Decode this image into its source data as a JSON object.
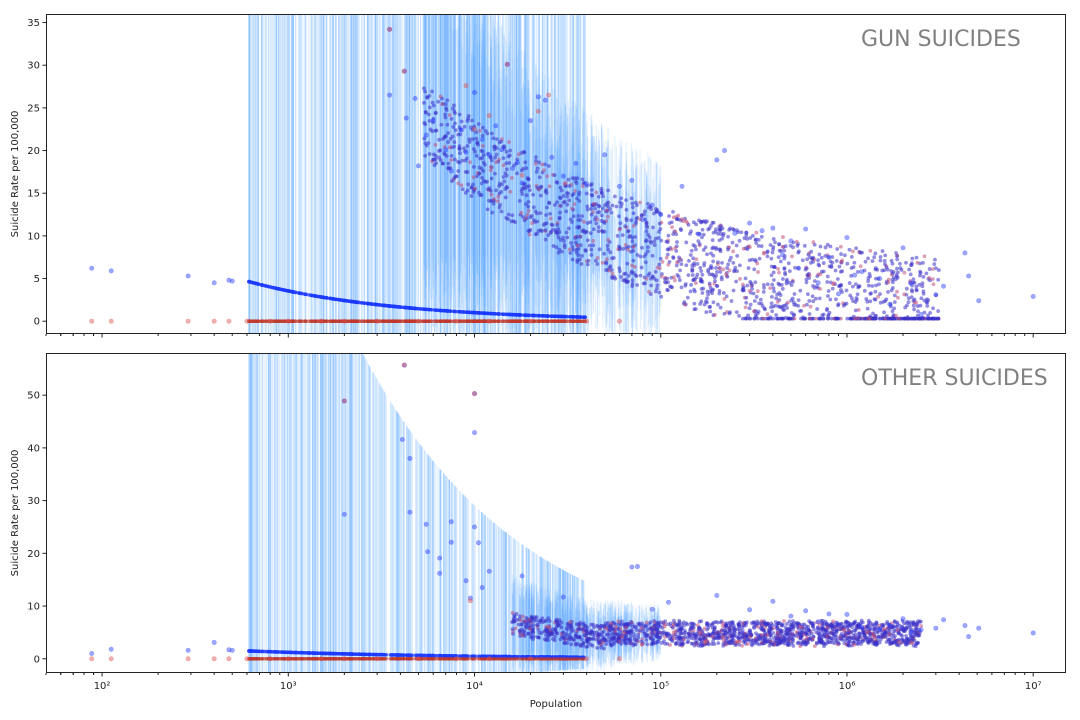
{
  "chart_data": [
    {
      "type": "scatter",
      "title": "GUN SUICIDES",
      "ylabel": "Suicide Rate per 100,000",
      "xlabel": "",
      "xscale": "log",
      "xlim": [
        50,
        15000000
      ],
      "ylim": [
        -1.5,
        36
      ],
      "yticks": [
        0,
        5,
        10,
        15,
        20,
        25,
        30,
        35
      ],
      "xticks": [
        100,
        1000,
        10000,
        100000,
        1000000,
        10000000
      ],
      "xtick_labels": [
        "10²",
        "10³",
        "10⁴",
        "10⁵",
        "10⁶",
        "10⁷"
      ],
      "grid": false,
      "legend": "none",
      "series": [
        {
          "color": "#2a3fff",
          "points": [
            [
              88,
              6.2
            ],
            [
              112,
              5.9
            ],
            [
              290,
              5.3
            ],
            [
              400,
              4.5
            ],
            [
              480,
              4.8
            ],
            [
              500,
              4.7
            ],
            [
              3500,
              26.5
            ],
            [
              3500,
              34.2
            ],
            [
              4200,
              29.3
            ],
            [
              4300,
              23.8
            ],
            [
              4800,
              26.1
            ],
            [
              5000,
              18.2
            ],
            [
              5500,
              21.8
            ],
            [
              6000,
              23.5
            ],
            [
              7000,
              20.1
            ],
            [
              7500,
              17.6
            ],
            [
              8500,
              22.4
            ],
            [
              9000,
              19.8
            ],
            [
              10000,
              26.8
            ],
            [
              11000,
              21.3
            ],
            [
              12000,
              19.5
            ],
            [
              13000,
              22.9
            ],
            [
              14000,
              20.1
            ],
            [
              15000,
              30.1
            ],
            [
              16000,
              17.9
            ],
            [
              17000,
              18.6
            ],
            [
              18000,
              16.2
            ],
            [
              20000,
              23.5
            ],
            [
              22000,
              26.3
            ],
            [
              24000,
              25.9
            ],
            [
              26000,
              19.2
            ],
            [
              30000,
              17.0
            ],
            [
              35000,
              18.5
            ],
            [
              40000,
              16.1
            ],
            [
              50000,
              19.5
            ],
            [
              60000,
              15.8
            ],
            [
              70000,
              16.5
            ],
            [
              80000,
              11.9
            ],
            [
              90000,
              13.6
            ],
            [
              100000,
              12.5
            ],
            [
              130000,
              15.8
            ],
            [
              160000,
              10.2
            ],
            [
              200000,
              18.9
            ],
            [
              220000,
              20.0
            ],
            [
              250000,
              10.3
            ],
            [
              300000,
              11.5
            ],
            [
              350000,
              10.6
            ],
            [
              400000,
              10.9
            ],
            [
              450000,
              7.8
            ],
            [
              500000,
              9.4
            ],
            [
              550000,
              6.2
            ],
            [
              600000,
              10.8
            ],
            [
              700000,
              4.5
            ],
            [
              800000,
              7.5
            ],
            [
              900000,
              3.2
            ],
            [
              1000000,
              9.8
            ],
            [
              1100000,
              5.4
            ],
            [
              1200000,
              5.8
            ],
            [
              1500000,
              5.0
            ],
            [
              1700000,
              2.0
            ],
            [
              2000000,
              8.6
            ],
            [
              2200000,
              4.5
            ],
            [
              2500000,
              0.8
            ],
            [
              3000000,
              3.1
            ],
            [
              3300000,
              4.1
            ],
            [
              4300000,
              8.0
            ],
            [
              4500000,
              5.3
            ],
            [
              5100000,
              2.4
            ],
            [
              10000000,
              2.9
            ]
          ]
        },
        {
          "color": "#d9534f",
          "points": [
            [
              88,
              0
            ],
            [
              112,
              0
            ],
            [
              290,
              0
            ],
            [
              400,
              0
            ],
            [
              480,
              0
            ],
            [
              600,
              0
            ],
            [
              800,
              0
            ],
            [
              1000,
              0
            ],
            [
              1500,
              0
            ],
            [
              2000,
              0
            ],
            [
              3000,
              0
            ],
            [
              5000,
              0
            ],
            [
              8000,
              0
            ],
            [
              12000,
              0
            ],
            [
              20000,
              0
            ],
            [
              40000,
              0
            ],
            [
              60000,
              0
            ],
            [
              3500,
              34.2
            ],
            [
              4200,
              29.3
            ],
            [
              9000,
              27.6
            ],
            [
              12000,
              24.1
            ],
            [
              15000,
              30.1
            ],
            [
              22000,
              24.6
            ],
            [
              25000,
              26.5
            ],
            [
              10000,
              22.5
            ],
            [
              18000,
              17.1
            ]
          ]
        }
      ]
    },
    {
      "type": "scatter",
      "title": "OTHER SUICIDES",
      "ylabel": "Suicide Rate per 100,000",
      "xlabel": "Population",
      "xscale": "log",
      "xlim": [
        50,
        15000000
      ],
      "ylim": [
        -2.7,
        58
      ],
      "yticks": [
        0,
        10,
        20,
        30,
        40,
        50
      ],
      "xticks": [
        100,
        1000,
        10000,
        100000,
        1000000,
        10000000
      ],
      "xtick_labels": [
        "10²",
        "10³",
        "10⁴",
        "10⁵",
        "10⁶",
        "10⁷"
      ],
      "grid": false,
      "legend": "none",
      "series": [
        {
          "color": "#2a3fff",
          "points": [
            [
              88,
              1.0
            ],
            [
              112,
              1.8
            ],
            [
              290,
              1.6
            ],
            [
              400,
              3.1
            ],
            [
              480,
              1.7
            ],
            [
              500,
              1.6
            ],
            [
              2000,
              27.4
            ],
            [
              2000,
              48.9
            ],
            [
              4100,
              41.6
            ],
            [
              4200,
              55.7
            ],
            [
              4500,
              38.0
            ],
            [
              4500,
              27.8
            ],
            [
              5500,
              25.5
            ],
            [
              5600,
              20.3
            ],
            [
              6500,
              19.1
            ],
            [
              6500,
              16.2
            ],
            [
              7500,
              22.1
            ],
            [
              7500,
              26.0
            ],
            [
              9000,
              14.8
            ],
            [
              9500,
              11.5
            ],
            [
              10000,
              50.3
            ],
            [
              10000,
              42.9
            ],
            [
              10000,
              25.0
            ],
            [
              10500,
              22.0
            ],
            [
              11000,
              13.5
            ],
            [
              12000,
              16.6
            ],
            [
              18000,
              15.7
            ],
            [
              30000,
              11.7
            ],
            [
              70000,
              17.4
            ],
            [
              75000,
              17.5
            ],
            [
              90000,
              9.4
            ],
            [
              110000,
              10.7
            ],
            [
              200000,
              12.0
            ],
            [
              300000,
              9.3
            ],
            [
              400000,
              10.9
            ],
            [
              500000,
              8.1
            ],
            [
              600000,
              9.1
            ],
            [
              700000,
              7.0
            ],
            [
              800000,
              8.5
            ],
            [
              900000,
              6.3
            ],
            [
              1000000,
              8.4
            ],
            [
              1200000,
              6.0
            ],
            [
              1500000,
              5.6
            ],
            [
              1700000,
              6.3
            ],
            [
              2000000,
              7.6
            ],
            [
              2200000,
              5.1
            ],
            [
              2500000,
              5.5
            ],
            [
              3000000,
              5.8
            ],
            [
              3300000,
              7.4
            ],
            [
              4300000,
              6.3
            ],
            [
              4500000,
              4.2
            ],
            [
              5100000,
              5.8
            ],
            [
              10000000,
              4.9
            ]
          ]
        },
        {
          "color": "#d9534f",
          "points": [
            [
              88,
              0
            ],
            [
              112,
              0
            ],
            [
              290,
              0
            ],
            [
              400,
              0
            ],
            [
              480,
              0
            ],
            [
              600,
              0
            ],
            [
              800,
              0
            ],
            [
              1000,
              0
            ],
            [
              1500,
              0
            ],
            [
              2000,
              0
            ],
            [
              3000,
              0
            ],
            [
              5000,
              0
            ],
            [
              8000,
              0
            ],
            [
              12000,
              0
            ],
            [
              20000,
              0
            ],
            [
              40000,
              0
            ],
            [
              60000,
              0
            ],
            [
              4200,
              55.7
            ],
            [
              10000,
              50.3
            ],
            [
              2000,
              48.9
            ],
            [
              9500,
              11.0
            ]
          ]
        }
      ]
    }
  ]
}
